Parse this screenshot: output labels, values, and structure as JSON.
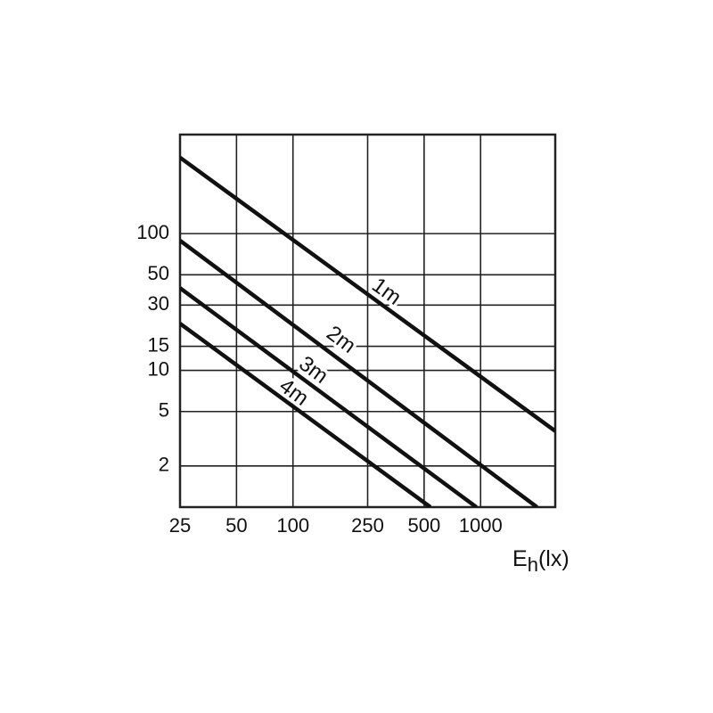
{
  "chart_data": {
    "type": "line",
    "xscale": "log",
    "yscale": "log",
    "grid": true,
    "xlim": [
      25,
      2500
    ],
    "ylim": [
      1,
      530
    ],
    "xticks": [
      25,
      50,
      100,
      250,
      500,
      1000
    ],
    "yticks": [
      2,
      5,
      10,
      15,
      30,
      50,
      100
    ],
    "xlabel_parts": [
      "E",
      "h",
      "(lx)"
    ],
    "color": "#111111",
    "series": [
      {
        "name": "1m",
        "x": [
          25,
          2500
        ],
        "values": [
          360,
          3.6
        ]
      },
      {
        "name": "2m",
        "x": [
          25,
          2000
        ],
        "values": [
          89,
          1
        ]
      },
      {
        "name": "3m",
        "x": [
          25,
          950
        ],
        "values": [
          40,
          1
        ]
      },
      {
        "name": "4m",
        "x": [
          25,
          540
        ],
        "values": [
          22,
          1
        ]
      }
    ]
  }
}
